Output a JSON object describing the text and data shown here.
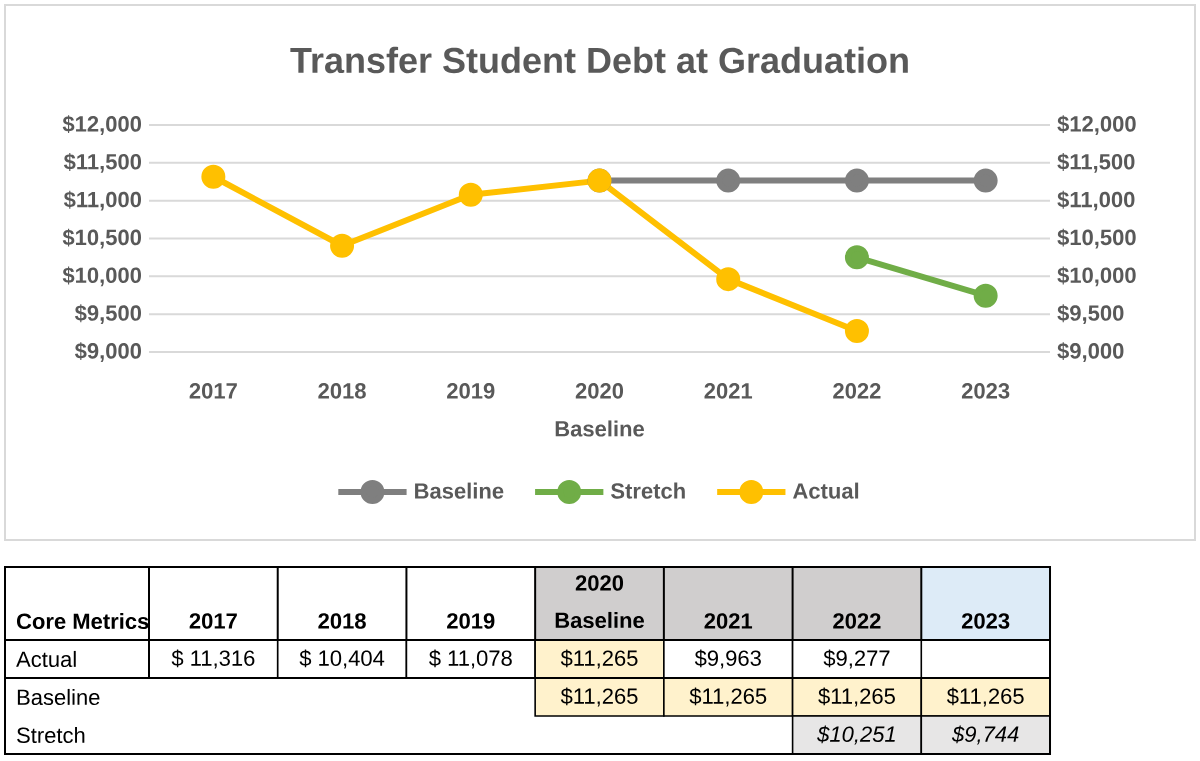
{
  "chart_data": {
    "type": "line",
    "title": "Transfer Student Debt at Graduation",
    "xlabel": "Baseline",
    "categories": [
      "2017",
      "2018",
      "2019",
      "2020",
      "2021",
      "2022",
      "2023"
    ],
    "series": [
      {
        "name": "Baseline",
        "color": "#7f7f7f",
        "values": [
          null,
          null,
          null,
          11265,
          11265,
          11265,
          11265
        ],
        "value_labels": [
          null,
          null,
          null,
          "$11,265",
          "$11,265",
          "$11,265",
          "$11,265"
        ]
      },
      {
        "name": "Stretch",
        "color": "#70ad47",
        "values": [
          null,
          null,
          null,
          null,
          null,
          10251,
          9744
        ],
        "value_labels": [
          null,
          null,
          null,
          null,
          null,
          "$10,251",
          "$9,744"
        ]
      },
      {
        "name": "Actual",
        "color": "#ffc000",
        "values": [
          11316,
          10404,
          11078,
          11265,
          9963,
          9277,
          null
        ],
        "value_labels": [
          "$ 11,316",
          "$ 10,404",
          "$ 11,078",
          "$11,265",
          "$9,963",
          "$9,277",
          null
        ]
      }
    ],
    "ylim": [
      9000,
      12000
    ],
    "yticks": [
      {
        "value": 9000,
        "label": "$9,000"
      },
      {
        "value": 9500,
        "label": "$9,500"
      },
      {
        "value": 10000,
        "label": "$10,000"
      },
      {
        "value": 10500,
        "label": "$10,500"
      },
      {
        "value": 11000,
        "label": "$11,000"
      },
      {
        "value": 11500,
        "label": "$11,500"
      },
      {
        "value": 12000,
        "label": "$12,000"
      }
    ],
    "y2lim": [
      9000,
      12000
    ],
    "y2ticks": [
      {
        "value": 9000,
        "label": "$9,000"
      },
      {
        "value": 9500,
        "label": "$9,500"
      },
      {
        "value": 10000,
        "label": "$10,000"
      },
      {
        "value": 10500,
        "label": "$10,500"
      },
      {
        "value": 11000,
        "label": "$11,000"
      },
      {
        "value": 11500,
        "label": "$11,500"
      },
      {
        "value": 12000,
        "label": "$12,000"
      }
    ],
    "grid": "y",
    "legend": "bottom",
    "marker": "circle",
    "line_style": "solid",
    "annotations": [
      "Core Metrics"
    ]
  }
}
